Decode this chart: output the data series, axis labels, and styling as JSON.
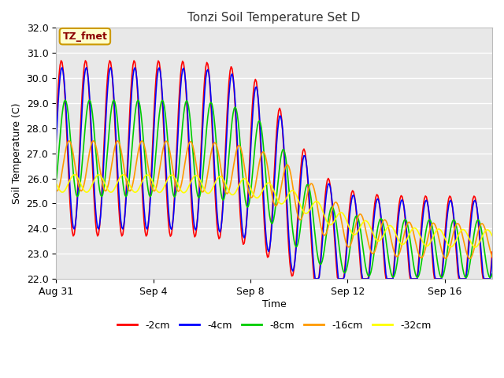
{
  "title": "Tonzi Soil Temperature Set D",
  "xlabel": "Time",
  "ylabel": "Soil Temperature (C)",
  "annotation": "TZ_fmet",
  "ylim": [
    22.0,
    32.0
  ],
  "yticks": [
    22.0,
    23.0,
    24.0,
    25.0,
    26.0,
    27.0,
    28.0,
    29.0,
    30.0,
    31.0,
    32.0
  ],
  "xtick_labels": [
    "Aug 31",
    "Sep 4",
    "Sep 8",
    "Sep 12",
    "Sep 16"
  ],
  "xtick_positions": [
    0,
    96,
    192,
    288,
    384
  ],
  "colors": {
    "-2cm": "#ff0000",
    "-4cm": "#0000ff",
    "-8cm": "#00cc00",
    "-16cm": "#ff9900",
    "-32cm": "#ffff00"
  },
  "legend_labels": [
    "-2cm",
    "-4cm",
    "-8cm",
    "-16cm",
    "-32cm"
  ],
  "background_color": "#e8e8e8",
  "grid_color": "#ffffff",
  "title_color": "#333333",
  "annotation_bg": "#ffffcc",
  "annotation_border": "#cc9900"
}
